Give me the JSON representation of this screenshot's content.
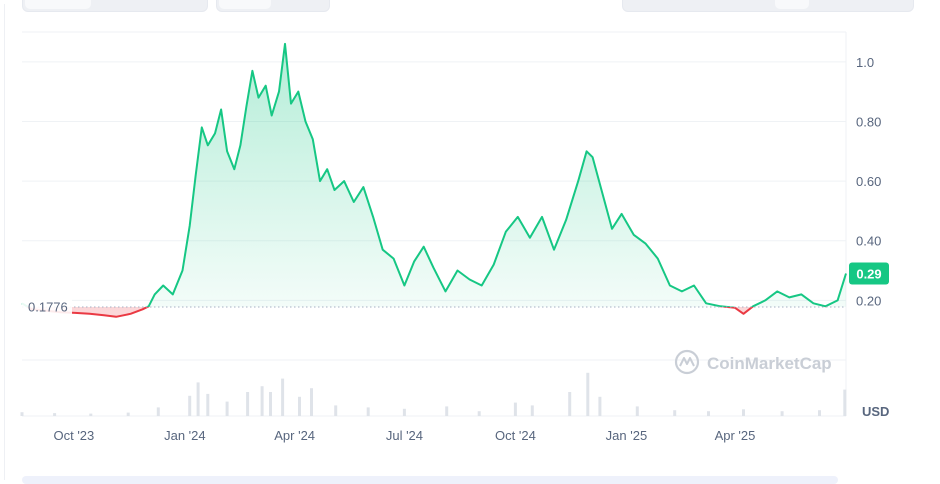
{
  "chart_data": {
    "type": "area",
    "title": "",
    "xlabel": "",
    "ylabel": "",
    "currency_label": "USD",
    "baseline_label": "0.1776",
    "baseline": 0.1776,
    "current_price_label": "0.29",
    "current_price": 0.29,
    "ylim": [
      0.0,
      1.1
    ],
    "xlim": [
      "2023-08-19",
      "2025-07-02"
    ],
    "y_ticks": [
      {
        "label": "1.0",
        "value": 1.0
      },
      {
        "label": "0.80",
        "value": 0.8
      },
      {
        "label": "0.60",
        "value": 0.6
      },
      {
        "label": "0.40",
        "value": 0.4
      },
      {
        "label": "0.20",
        "value": 0.2
      }
    ],
    "x_ticks": [
      {
        "label": "Oct '23",
        "date": "2023-10-01"
      },
      {
        "label": "Jan '24",
        "date": "2024-01-01"
      },
      {
        "label": "Apr '24",
        "date": "2024-04-01"
      },
      {
        "label": "Jul '24",
        "date": "2024-07-01"
      },
      {
        "label": "Oct '24",
        "date": "2024-10-01"
      },
      {
        "label": "Jan '25",
        "date": "2025-01-01"
      },
      {
        "label": "Apr '25",
        "date": "2025-04-01"
      }
    ],
    "series": [
      {
        "values": [
          [
            "2023-08-19",
            0.19
          ],
          [
            "2023-08-27",
            0.17
          ],
          [
            "2023-09-08",
            0.165
          ],
          [
            "2023-09-20",
            0.16
          ],
          [
            "2023-10-02",
            0.158
          ],
          [
            "2023-10-14",
            0.155
          ],
          [
            "2023-10-26",
            0.15
          ],
          [
            "2023-11-05",
            0.145
          ],
          [
            "2023-11-17",
            0.155
          ],
          [
            "2023-11-27",
            0.17
          ],
          [
            "2023-12-02",
            0.18
          ],
          [
            "2023-12-07",
            0.22
          ],
          [
            "2023-12-14",
            0.25
          ],
          [
            "2023-12-22",
            0.22
          ],
          [
            "2023-12-30",
            0.3
          ],
          [
            "2024-01-05",
            0.45
          ],
          [
            "2024-01-10",
            0.62
          ],
          [
            "2024-01-15",
            0.78
          ],
          [
            "2024-01-20",
            0.72
          ],
          [
            "2024-01-26",
            0.76
          ],
          [
            "2024-01-31",
            0.84
          ],
          [
            "2024-02-05",
            0.7
          ],
          [
            "2024-02-11",
            0.64
          ],
          [
            "2024-02-16",
            0.72
          ],
          [
            "2024-02-21",
            0.85
          ],
          [
            "2024-02-26",
            0.97
          ],
          [
            "2024-03-02",
            0.88
          ],
          [
            "2024-03-08",
            0.92
          ],
          [
            "2024-03-13",
            0.82
          ],
          [
            "2024-03-19",
            0.9
          ],
          [
            "2024-03-24",
            1.06
          ],
          [
            "2024-03-29",
            0.86
          ],
          [
            "2024-04-04",
            0.9
          ],
          [
            "2024-04-10",
            0.8
          ],
          [
            "2024-04-16",
            0.74
          ],
          [
            "2024-04-22",
            0.6
          ],
          [
            "2024-04-28",
            0.64
          ],
          [
            "2024-05-04",
            0.57
          ],
          [
            "2024-05-12",
            0.6
          ],
          [
            "2024-05-20",
            0.53
          ],
          [
            "2024-05-28",
            0.58
          ],
          [
            "2024-06-05",
            0.48
          ],
          [
            "2024-06-13",
            0.37
          ],
          [
            "2024-06-22",
            0.34
          ],
          [
            "2024-07-01",
            0.25
          ],
          [
            "2024-07-09",
            0.33
          ],
          [
            "2024-07-17",
            0.38
          ],
          [
            "2024-07-25",
            0.31
          ],
          [
            "2024-08-04",
            0.23
          ],
          [
            "2024-08-14",
            0.3
          ],
          [
            "2024-08-24",
            0.27
          ],
          [
            "2024-09-03",
            0.25
          ],
          [
            "2024-09-13",
            0.32
          ],
          [
            "2024-09-23",
            0.43
          ],
          [
            "2024-10-03",
            0.48
          ],
          [
            "2024-10-13",
            0.41
          ],
          [
            "2024-10-23",
            0.48
          ],
          [
            "2024-11-02",
            0.37
          ],
          [
            "2024-11-12",
            0.47
          ],
          [
            "2024-11-22",
            0.6
          ],
          [
            "2024-11-29",
            0.7
          ],
          [
            "2024-12-04",
            0.68
          ],
          [
            "2024-12-12",
            0.56
          ],
          [
            "2024-12-20",
            0.44
          ],
          [
            "2024-12-28",
            0.49
          ],
          [
            "2025-01-07",
            0.42
          ],
          [
            "2025-01-17",
            0.39
          ],
          [
            "2025-01-27",
            0.34
          ],
          [
            "2025-02-06",
            0.25
          ],
          [
            "2025-02-16",
            0.23
          ],
          [
            "2025-02-26",
            0.25
          ],
          [
            "2025-03-08",
            0.19
          ],
          [
            "2025-03-20",
            0.18
          ],
          [
            "2025-04-01",
            0.175
          ],
          [
            "2025-04-08",
            0.155
          ],
          [
            "2025-04-16",
            0.18
          ],
          [
            "2025-04-26",
            0.2
          ],
          [
            "2025-05-06",
            0.23
          ],
          [
            "2025-05-16",
            0.21
          ],
          [
            "2025-05-26",
            0.22
          ],
          [
            "2025-06-05",
            0.19
          ],
          [
            "2025-06-15",
            0.18
          ],
          [
            "2025-06-25",
            0.2
          ],
          [
            "2025-07-02",
            0.29
          ]
        ]
      }
    ],
    "volume": [
      [
        "2023-08-19",
        0.08
      ],
      [
        "2023-09-15",
        0.06
      ],
      [
        "2023-10-15",
        0.05
      ],
      [
        "2023-11-15",
        0.07
      ],
      [
        "2023-12-10",
        0.18
      ],
      [
        "2024-01-05",
        0.42
      ],
      [
        "2024-01-12",
        0.7
      ],
      [
        "2024-01-20",
        0.46
      ],
      [
        "2024-02-05",
        0.3
      ],
      [
        "2024-02-22",
        0.5
      ],
      [
        "2024-03-05",
        0.62
      ],
      [
        "2024-03-12",
        0.5
      ],
      [
        "2024-03-22",
        0.78
      ],
      [
        "2024-04-05",
        0.4
      ],
      [
        "2024-04-15",
        0.58
      ],
      [
        "2024-05-05",
        0.22
      ],
      [
        "2024-06-01",
        0.18
      ],
      [
        "2024-07-01",
        0.15
      ],
      [
        "2024-08-05",
        0.2
      ],
      [
        "2024-09-01",
        0.1
      ],
      [
        "2024-10-01",
        0.28
      ],
      [
        "2024-10-15",
        0.22
      ],
      [
        "2024-11-15",
        0.5
      ],
      [
        "2024-11-30",
        0.9
      ],
      [
        "2024-12-10",
        0.4
      ],
      [
        "2025-01-10",
        0.2
      ],
      [
        "2025-02-10",
        0.12
      ],
      [
        "2025-03-10",
        0.1
      ],
      [
        "2025-04-08",
        0.14
      ],
      [
        "2025-05-10",
        0.1
      ],
      [
        "2025-06-10",
        0.12
      ],
      [
        "2025-07-01",
        0.55
      ]
    ],
    "grid": true,
    "legend": "none",
    "colors": {
      "up_line": "#16c784",
      "down_line": "#ea3943",
      "up_fill": "#16c784",
      "down_fill": "#ea3943",
      "grid": "#eff2f5",
      "tick_text": "#58667e",
      "price_badge": "#16c784"
    }
  },
  "watermark": {
    "text": "CoinMarketCap",
    "icon": "coinmarketcap-logo-icon"
  }
}
